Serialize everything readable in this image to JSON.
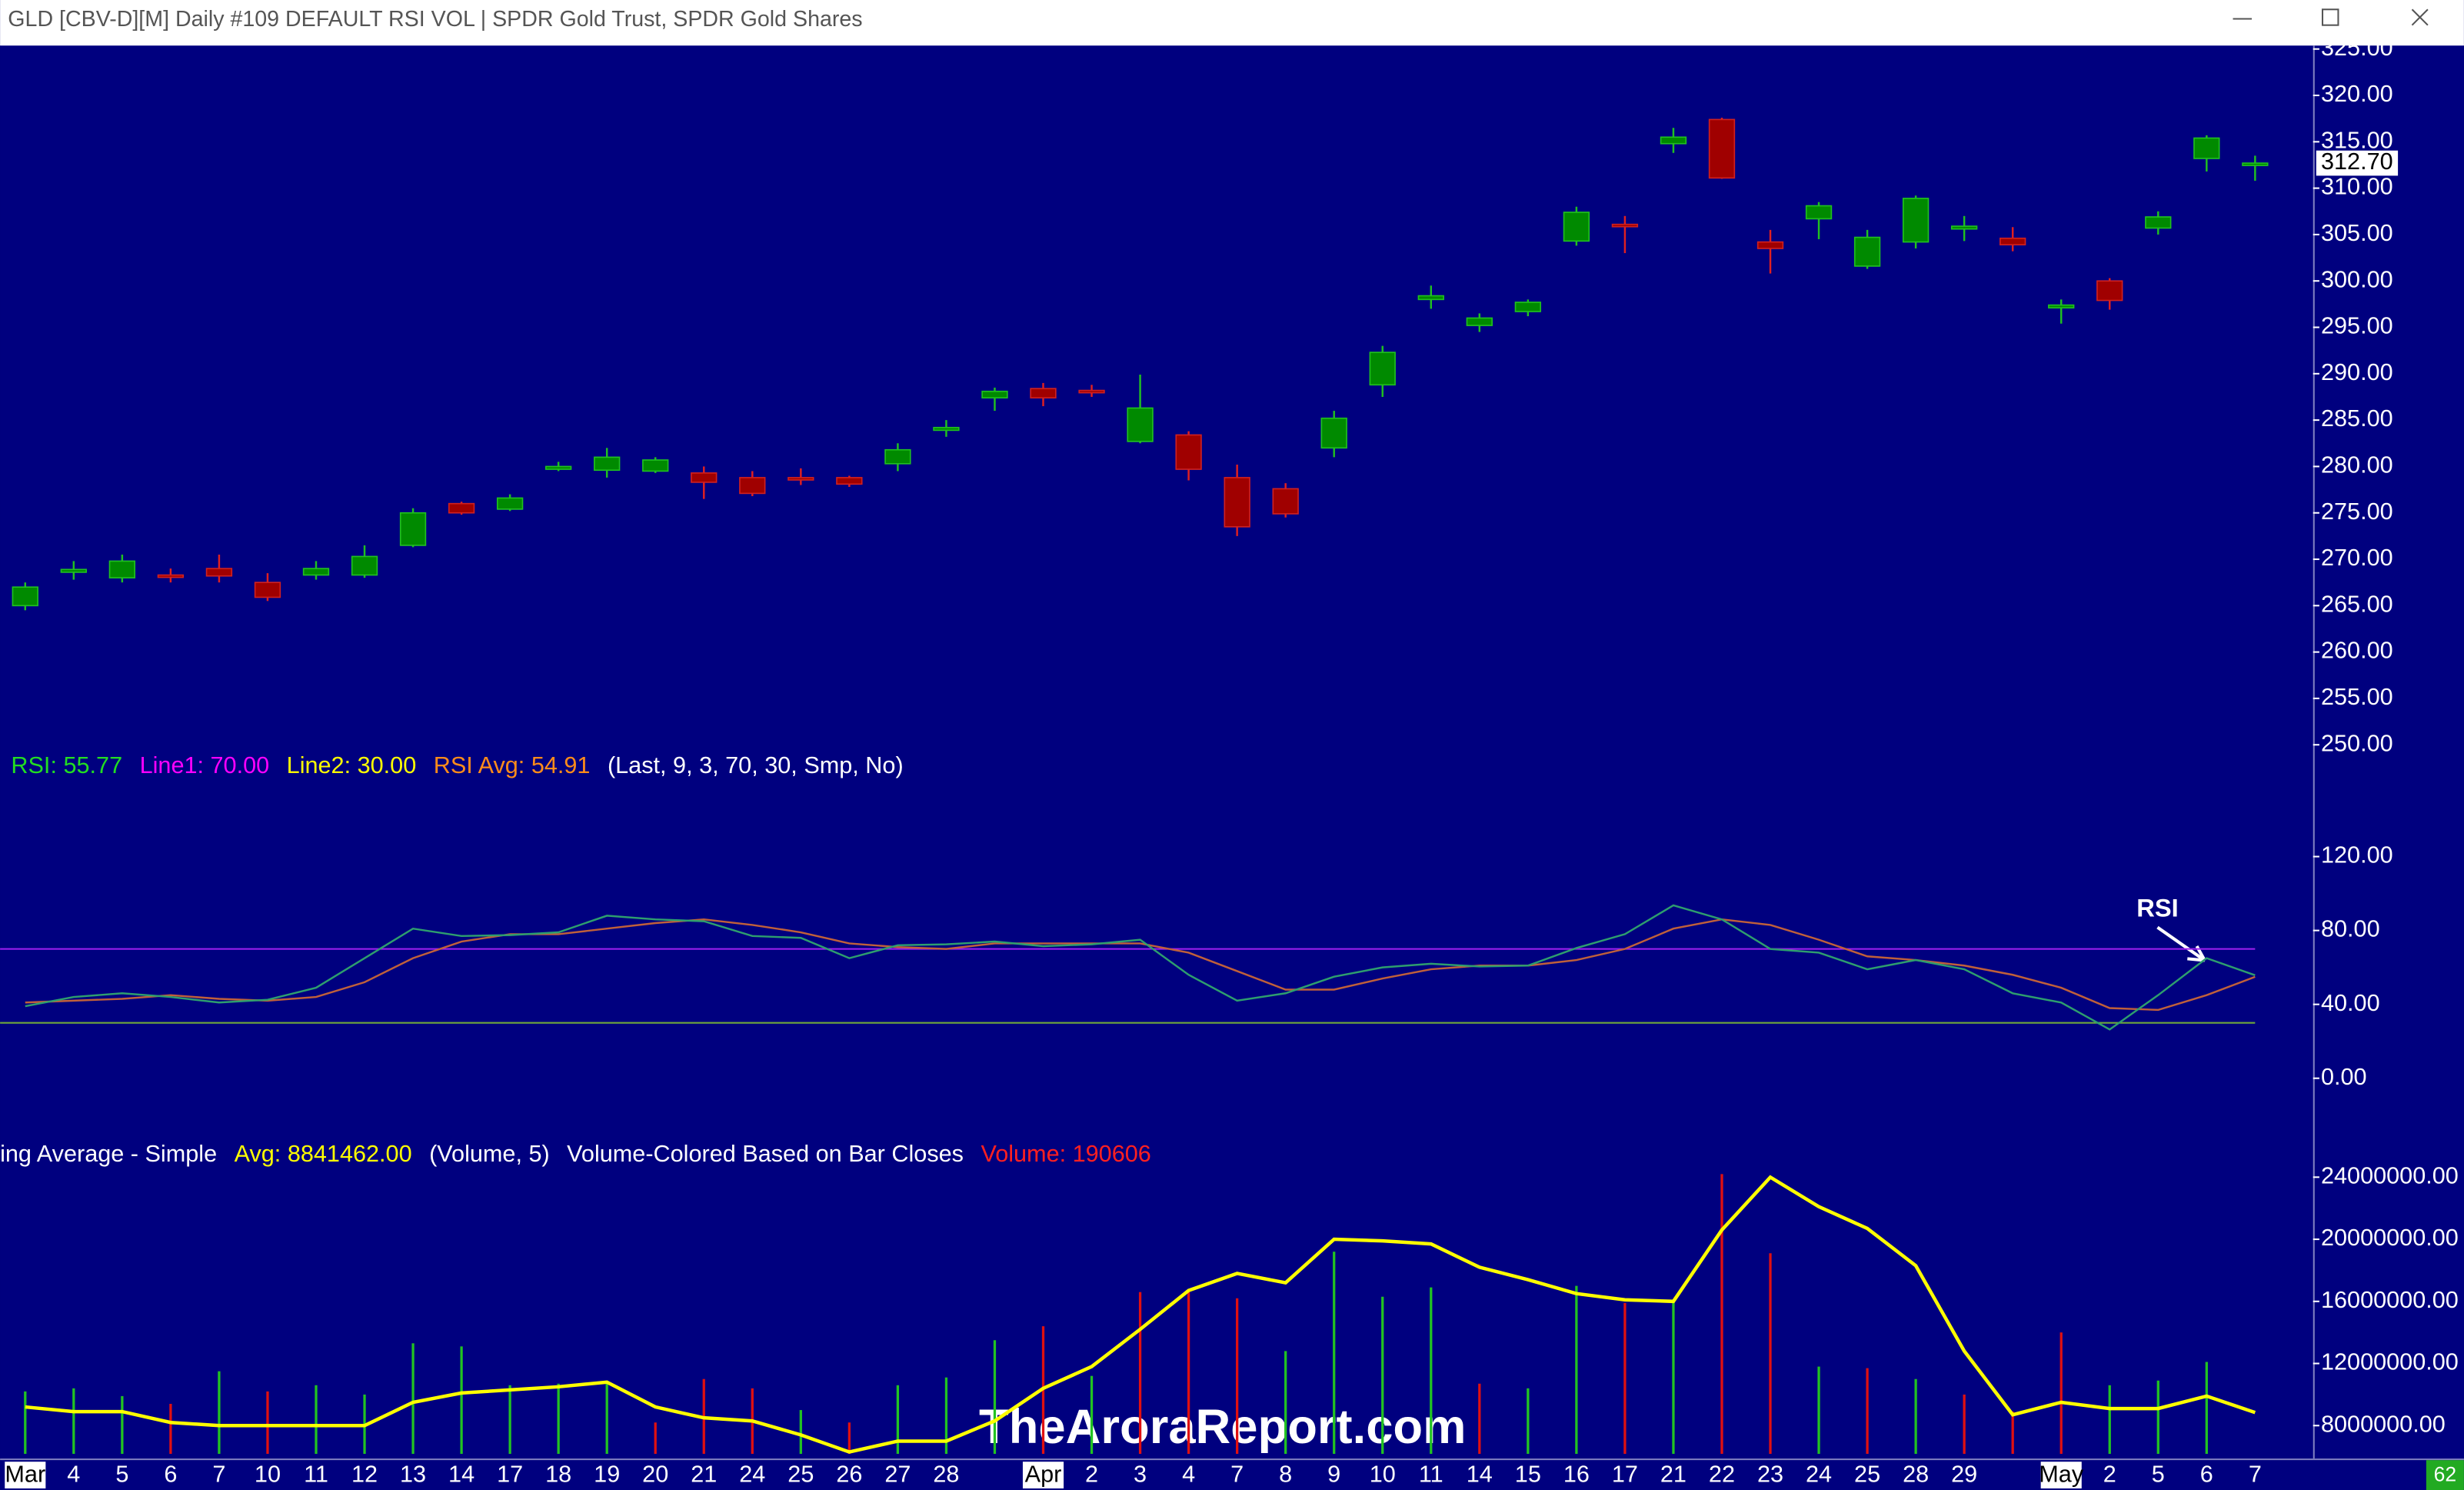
{
  "window": {
    "title": "GLD [CBV-D][M]  Daily #109 DEFAULT RSI VOL | SPDR Gold Trust, SPDR Gold Shares",
    "corner_badge": "62"
  },
  "watermark": "TheAroraReport.com",
  "categories": [
    "Mar",
    "4",
    "5",
    "6",
    "7",
    "10",
    "11",
    "12",
    "13",
    "14",
    "17",
    "18",
    "19",
    "20",
    "21",
    "24",
    "25",
    "26",
    "27",
    "28",
    null,
    "Apr",
    "2",
    "3",
    "4",
    "7",
    "8",
    "9",
    "10",
    "11",
    "14",
    "15",
    "16",
    "17",
    "21",
    "22",
    "23",
    "24",
    "25",
    "28",
    "29",
    null,
    "May",
    "2",
    "5",
    "6",
    "7"
  ],
  "chart_data": [
    {
      "type": "candlestick",
      "up_color": "#008a00",
      "down_color": "#a00000",
      "open": [
        265,
        268.6,
        268,
        268.3,
        269,
        267.5,
        268.3,
        268.3,
        271.5,
        276,
        275.4,
        279.7,
        279.6,
        279.5,
        279.3,
        278.8,
        278.8,
        278.8,
        280.3,
        283.9,
        287.4,
        288.4,
        288.2,
        282.7,
        283.4,
        278.8,
        277.6,
        282,
        288.8,
        298,
        295.2,
        296.7,
        304.3,
        306.1,
        314.8,
        317.4,
        304.2,
        306.7,
        301.6,
        304.2,
        305.6,
        304.6,
        297.1,
        300,
        305.7,
        313.2,
        312.6
      ],
      "high": [
        267.5,
        269.8,
        270.5,
        269,
        270.5,
        268.5,
        269.8,
        271.5,
        275.5,
        276.2,
        277,
        280.5,
        282,
        281,
        280,
        279.5,
        279.8,
        279,
        282.5,
        285,
        288.5,
        289,
        288.8,
        289.9,
        283.8,
        280.2,
        278.2,
        286,
        293,
        299.5,
        296.5,
        298,
        308,
        307,
        316.5,
        317.6,
        305.5,
        308.5,
        305.5,
        309.2,
        307,
        305.8,
        298,
        300.3,
        307.5,
        315.7,
        313.5
      ],
      "low": [
        264.5,
        267.8,
        267.5,
        267.5,
        267.5,
        265.5,
        267.8,
        268,
        271.3,
        274.8,
        275.2,
        279.5,
        278.8,
        279.3,
        276.5,
        276.8,
        278,
        277.8,
        279.5,
        283.2,
        286,
        286.5,
        287.5,
        282.5,
        278.5,
        272.5,
        274.5,
        281,
        287.5,
        297,
        294.5,
        296.2,
        303.8,
        303,
        313.8,
        311,
        300.8,
        304.5,
        301.3,
        303.5,
        304.3,
        303.2,
        295.4,
        296.9,
        305,
        311.8,
        310.8
      ],
      "close": [
        267,
        268.9,
        269.8,
        268.1,
        268.2,
        265.9,
        269,
        270.3,
        275,
        275,
        276.6,
        280,
        281,
        280.7,
        278.3,
        277.1,
        278.6,
        278.1,
        281.8,
        284.2,
        288.1,
        287.4,
        288,
        286.3,
        279.7,
        273.5,
        274.9,
        285.2,
        292.3,
        298.4,
        296,
        297.7,
        307.4,
        305.9,
        315.5,
        311.1,
        303.5,
        308.1,
        304.7,
        308.9,
        305.9,
        303.9,
        297.4,
        297.9,
        306.9,
        315.4,
        312.7
      ],
      "last_label": "312.70",
      "ylim": [
        249.3,
        325.2
      ],
      "yticks": [
        {
          "value": 250,
          "label": "250.00"
        },
        {
          "value": 255,
          "label": "255.00"
        },
        {
          "value": 260,
          "label": "260.00"
        },
        {
          "value": 265,
          "label": "265.00"
        },
        {
          "value": 270,
          "label": "270.00"
        },
        {
          "value": 275,
          "label": "275.00"
        },
        {
          "value": 280,
          "label": "280.00"
        },
        {
          "value": 285,
          "label": "285.00"
        },
        {
          "value": 290,
          "label": "290.00"
        },
        {
          "value": 295,
          "label": "295.00"
        },
        {
          "value": 300,
          "label": "300.00"
        },
        {
          "value": 305,
          "label": "305.00"
        },
        {
          "value": 310,
          "label": "310.00"
        },
        {
          "value": 315,
          "label": "315.00"
        },
        {
          "value": 320,
          "label": "320.00"
        },
        {
          "value": 325,
          "label": "325.00"
        }
      ]
    },
    {
      "type": "rsi",
      "legend": [
        {
          "text": "RSI: 55.77",
          "color": "#22dd22"
        },
        {
          "text": "Line1: 70.00",
          "color": "#ff00ff"
        },
        {
          "text": "Line2: 30.00",
          "color": "#ffff00"
        },
        {
          "text": "RSI Avg: 54.91",
          "color": "#ff8c1a"
        },
        {
          "text": "(Last, 9, 3, 70, 30, Smp, No)",
          "color": "#ffffff"
        }
      ],
      "series": [
        {
          "color": "#2e9e6e",
          "values": [
            39,
            44,
            46,
            44,
            41,
            42.5,
            49,
            65,
            81,
            77,
            77.5,
            79,
            88,
            86,
            85,
            77,
            76,
            65,
            72,
            72.5,
            74,
            71.5,
            72.5,
            75,
            56,
            42,
            46,
            55,
            60,
            62,
            60.5,
            61,
            70.5,
            78,
            93.6,
            86,
            70,
            68,
            59,
            64,
            59,
            46,
            41,
            26.4,
            45,
            65,
            55.77
          ]
        },
        {
          "color": "#c0603a",
          "values": [
            41,
            42,
            43,
            45,
            43,
            42,
            44,
            52,
            65,
            74,
            78,
            78,
            81,
            84,
            86,
            83,
            79,
            73,
            71,
            70,
            73,
            73,
            73,
            73,
            68,
            58,
            48,
            48,
            54,
            59,
            61,
            61,
            64,
            70,
            81,
            86,
            83,
            75,
            66,
            64,
            61,
            56,
            49,
            38,
            37,
            45,
            54.91
          ]
        }
      ],
      "hlines": [
        {
          "value": 70,
          "color": "#a020f0"
        },
        {
          "value": 30,
          "color": "#6fa83a"
        }
      ],
      "annotations": [
        {
          "text": "RSI"
        }
      ],
      "ylim": [
        -30.6,
        177
      ],
      "yticks": [
        {
          "value": 0,
          "label": "0.00"
        },
        {
          "value": 40,
          "label": "40.00"
        },
        {
          "value": 80,
          "label": "80.00"
        },
        {
          "value": 120,
          "label": "120.00"
        }
      ]
    },
    {
      "type": "volume",
      "up_color": "#22c322",
      "down_color": "#e01010",
      "legend": [
        {
          "text": "ing Average - Simple",
          "color": "#ffffff"
        },
        {
          "text": "Avg: 8841462.00",
          "color": "#ffff00"
        },
        {
          "text": "(Volume, 5)",
          "color": "#ffffff"
        },
        {
          "text": "Volume-Colored Based on Bar Closes",
          "color": "#ffffff"
        },
        {
          "text": "Volume: 190606",
          "color": "#ff2020"
        }
      ],
      "values": [
        10200000,
        10400000,
        9900000,
        9400000,
        11500000,
        10200000,
        10600000,
        10000000,
        13300000,
        13100000,
        10600000,
        10700000,
        10700000,
        8200000,
        11000000,
        10400000,
        9000000,
        8200000,
        10600000,
        11100000,
        13500000,
        14400000,
        11200000,
        16600000,
        16600000,
        16200000,
        12800000,
        19200000,
        16300000,
        16900000,
        10700000,
        10400000,
        17000000,
        15900000,
        16100000,
        24200000,
        19100000,
        11800000,
        11700000,
        11000000,
        10000000,
        8900000,
        14000000,
        10600000,
        10900000,
        12100000,
        190606
      ],
      "average": {
        "color": "#ffff00",
        "values": [
          9200000,
          8900000,
          8900000,
          8200000,
          8000000,
          8000000,
          8000000,
          8000000,
          9500000,
          10100000,
          10300000,
          10500000,
          10800000,
          9200000,
          8500000,
          8300000,
          7400000,
          6300000,
          7000000,
          7000000,
          8300000,
          10400000,
          11800000,
          14200000,
          16700000,
          17800000,
          17200000,
          20000000,
          19900000,
          19700000,
          18200000,
          17400000,
          16500000,
          16100000,
          16000000,
          20600000,
          24000000,
          22100000,
          20700000,
          18300000,
          12800000,
          8700000,
          9500000,
          9100000,
          9100000,
          9900000,
          8841462
        ]
      },
      "ylim": [
        6180000,
        26730000
      ],
      "yticks": [
        {
          "value": 8000000,
          "label": "8000000.00"
        },
        {
          "value": 12000000,
          "label": "12000000.00"
        },
        {
          "value": 16000000,
          "label": "16000000.00"
        },
        {
          "value": 20000000,
          "label": "20000000.00"
        },
        {
          "value": 24000000,
          "label": "24000000.00"
        }
      ]
    }
  ]
}
